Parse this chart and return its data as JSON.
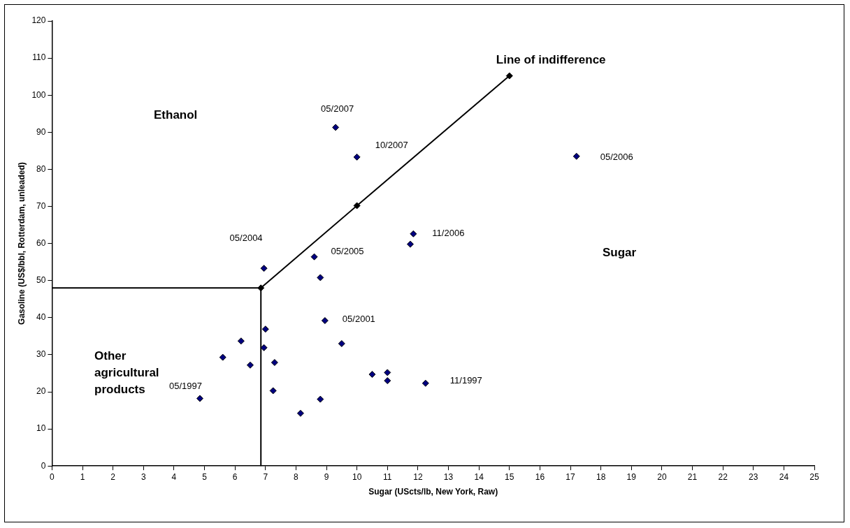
{
  "chart_data": {
    "type": "scatter",
    "xlabel": "Sugar (UScts/lb, New York, Raw)",
    "ylabel": "Gasoline (US$/bbl, Rotterdam, unleaded)",
    "xlim": [
      0,
      25
    ],
    "xticks": [
      0,
      1,
      2,
      3,
      4,
      5,
      6,
      7,
      8,
      9,
      10,
      11,
      12,
      13,
      14,
      15,
      16,
      17,
      18,
      19,
      20,
      21,
      22,
      23,
      24,
      25
    ],
    "ylim": [
      0,
      120
    ],
    "yticks": [
      0,
      10,
      20,
      30,
      40,
      50,
      60,
      70,
      80,
      90,
      100,
      110,
      120
    ],
    "grid": false,
    "legend": false,
    "marker": "diamond",
    "series": [
      {
        "color": "#000080",
        "x": [
          4.85,
          5.6,
          6.2,
          6.5,
          6.95,
          7.0,
          6.95,
          7.3,
          7.25,
          8.15,
          8.8,
          8.6,
          8.8,
          8.95,
          9.5,
          10.5,
          11.0,
          11.0,
          12.25,
          11.75,
          11.85,
          9.3,
          10.0,
          17.2
        ],
        "values": [
          18.2,
          29.3,
          33.7,
          27.2,
          53.3,
          36.9,
          31.9,
          27.9,
          20.3,
          14.2,
          18.0,
          56.4,
          50.8,
          39.2,
          33.0,
          24.7,
          25.2,
          23.0,
          22.3,
          59.8,
          62.6,
          91.3,
          83.3,
          83.5
        ]
      },
      {
        "type": "line",
        "color": "#000000",
        "marker": "diamond",
        "x": [
          6.85,
          10.0,
          15.0
        ],
        "values": [
          48,
          70.2,
          105.2
        ]
      },
      {
        "type": "line",
        "color": "#000000",
        "marker": "none",
        "x": [
          0,
          6.85,
          6.85
        ],
        "values": [
          48,
          48,
          0
        ]
      }
    ],
    "annotations": [
      {
        "text": "05/2007",
        "x": 9.3,
        "y": 91.3
      },
      {
        "text": "10/2007",
        "x": 10.0,
        "y": 83.3
      },
      {
        "text": "05/2006",
        "x": 17.2,
        "y": 83.5
      },
      {
        "text": "11/2006",
        "x": 11.85,
        "y": 62.6
      },
      {
        "text": "05/2005",
        "x": 8.6,
        "y": 56.4
      },
      {
        "text": "05/2004",
        "x": 6.95,
        "y": 53.3
      },
      {
        "text": "05/2001",
        "x": 8.95,
        "y": 39.2
      },
      {
        "text": "11/1997",
        "x": 12.25,
        "y": 22.3
      },
      {
        "text": "05/1997",
        "x": 4.85,
        "y": 18.2
      },
      "Ethanol",
      {
        "text": "Line of indifference",
        "x": 15.0,
        "y": 105.2
      },
      "Sugar",
      "Other agricultural products"
    ]
  }
}
